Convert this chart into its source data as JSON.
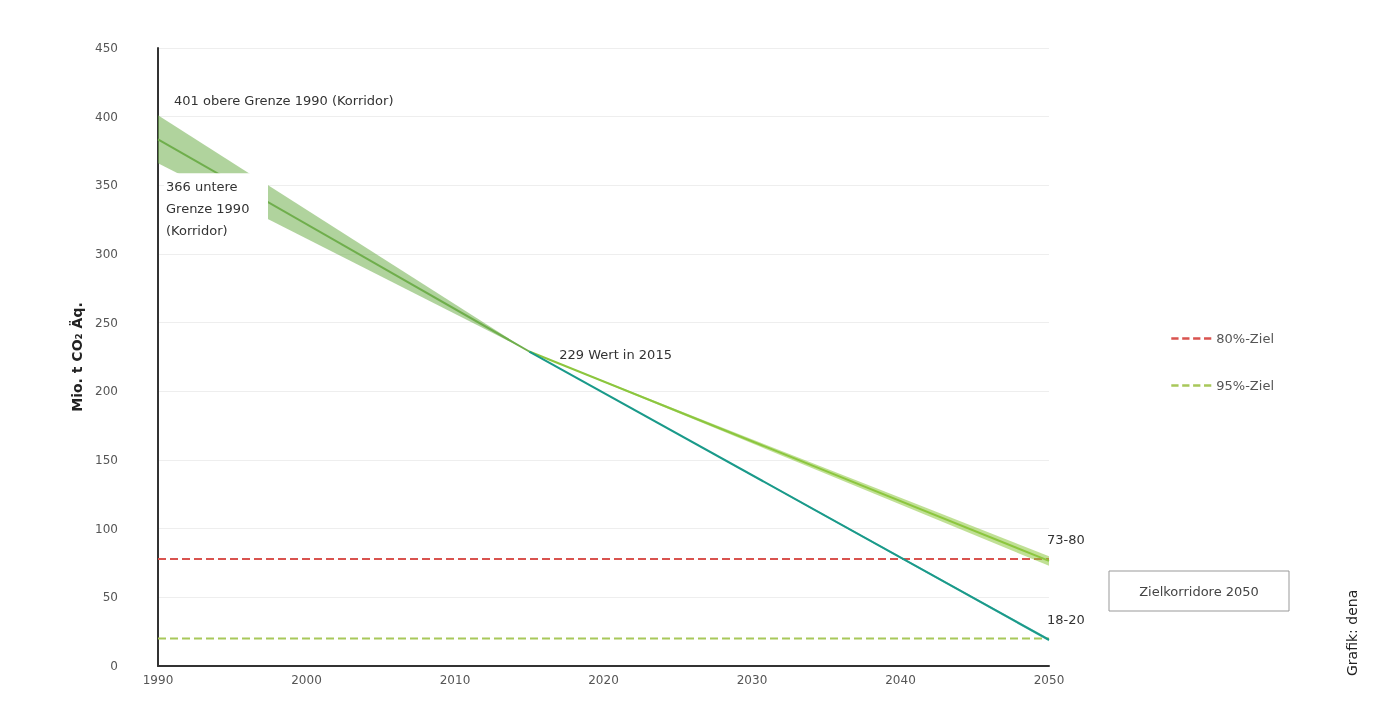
{
  "chart_data": {
    "type": "line",
    "ylabel": "Mio. t CO₂ Äq.",
    "xlim": [
      1990,
      2050
    ],
    "xticks": [
      1990,
      2000,
      2010,
      2020,
      2030,
      2040,
      2050
    ],
    "ylim": [
      0,
      450
    ],
    "yticks": [
      0,
      50,
      100,
      150,
      200,
      250,
      300,
      350,
      400,
      450
    ],
    "grid": "y",
    "legend": "right",
    "marker": "none",
    "series": [
      {
        "color": "#6fae4c",
        "x": [
          1990,
          2015
        ],
        "values": [
          383.5,
          229
        ],
        "lower": [
          366,
          229
        ],
        "upper": [
          401,
          229
        ]
      },
      {
        "color": "#8cc63e",
        "x": [
          2015,
          2050
        ],
        "values": [
          229,
          76.5
        ],
        "lower": [
          229,
          73
        ],
        "upper": [
          229,
          80
        ]
      },
      {
        "color": "#1a9a8a",
        "x": [
          2015,
          2050
        ],
        "values": [
          229,
          19
        ],
        "lower": [
          229,
          18
        ],
        "upper": [
          229,
          20
        ]
      }
    ],
    "ref_lines": [
      {
        "axis": "y",
        "value": 78,
        "label": "80%-Ziel",
        "color": "#d9534f",
        "line_style": "dashed"
      },
      {
        "axis": "y",
        "value": 20,
        "label": "95%-Ziel",
        "color": "#a8c85a",
        "line_style": "dashed"
      }
    ],
    "annotations": [
      {
        "text": "401 obere Grenze 1990 (Korridor)",
        "x": 1990,
        "y": 401
      },
      {
        "text": "366 untere Grenze 1990 (Korridor)",
        "x": 1990,
        "y": 366
      },
      {
        "text": "229 Wert in 2015",
        "x": 2015,
        "y": 229
      },
      {
        "text": "73-80",
        "x": 2050,
        "y": 80
      },
      {
        "text": "18-20",
        "x": 2050,
        "y": 20
      },
      "Zielkorridore 2050",
      "Grafik: dena"
    ]
  }
}
